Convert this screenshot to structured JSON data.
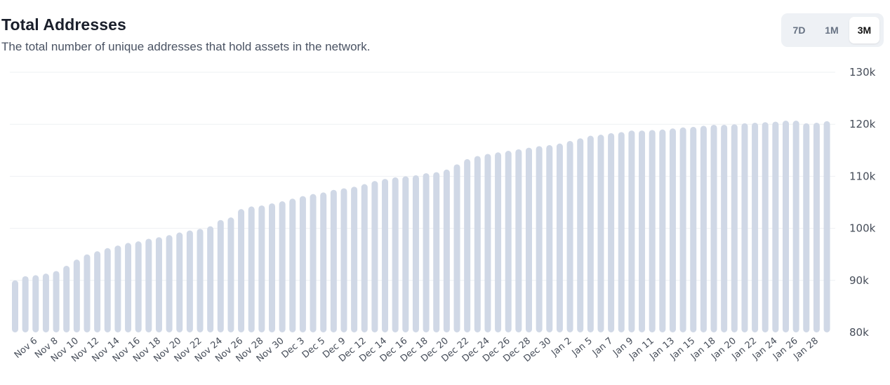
{
  "header": {
    "title": "Total Addresses",
    "subtitle": "The total number of unique addresses that hold assets in the network."
  },
  "range_toggle": {
    "options": [
      "7D",
      "1M",
      "3M"
    ],
    "selected": "3M"
  },
  "colors": {
    "bar": "#d0d8e6",
    "grid": "#eef0f3",
    "axis_text": "#464d59",
    "toggle_bg": "#eef1f5"
  },
  "chart_data": {
    "type": "bar",
    "title": "Total Addresses",
    "ylim": [
      80000,
      130000
    ],
    "y_ticks": [
      {
        "value": 130000,
        "label": "130k"
      },
      {
        "value": 120000,
        "label": "120k"
      },
      {
        "value": 110000,
        "label": "110k"
      },
      {
        "value": 100000,
        "label": "100k"
      },
      {
        "value": 90000,
        "label": "90k"
      },
      {
        "value": 80000,
        "label": "80k"
      }
    ],
    "y_axis_position": "right",
    "grid": true,
    "x_tick_labels": [
      {
        "bar_index": 2,
        "label": "Nov 6"
      },
      {
        "bar_index": 4,
        "label": "Nov 8"
      },
      {
        "bar_index": 6,
        "label": "Nov 10"
      },
      {
        "bar_index": 8,
        "label": "Nov 12"
      },
      {
        "bar_index": 10,
        "label": "Nov 14"
      },
      {
        "bar_index": 12,
        "label": "Nov 16"
      },
      {
        "bar_index": 14,
        "label": "Nov 18"
      },
      {
        "bar_index": 16,
        "label": "Nov 20"
      },
      {
        "bar_index": 18,
        "label": "Nov 22"
      },
      {
        "bar_index": 20,
        "label": "Nov 24"
      },
      {
        "bar_index": 22,
        "label": "Nov 26"
      },
      {
        "bar_index": 24,
        "label": "Nov 28"
      },
      {
        "bar_index": 26,
        "label": "Nov 30"
      },
      {
        "bar_index": 28,
        "label": "Dec 3"
      },
      {
        "bar_index": 30,
        "label": "Dec 5"
      },
      {
        "bar_index": 32,
        "label": "Dec 9"
      },
      {
        "bar_index": 34,
        "label": "Dec 12"
      },
      {
        "bar_index": 36,
        "label": "Dec 14"
      },
      {
        "bar_index": 38,
        "label": "Dec 16"
      },
      {
        "bar_index": 40,
        "label": "Dec 18"
      },
      {
        "bar_index": 42,
        "label": "Dec 20"
      },
      {
        "bar_index": 44,
        "label": "Dec 22"
      },
      {
        "bar_index": 46,
        "label": "Dec 24"
      },
      {
        "bar_index": 48,
        "label": "Dec 26"
      },
      {
        "bar_index": 50,
        "label": "Dec 28"
      },
      {
        "bar_index": 52,
        "label": "Dec 30"
      },
      {
        "bar_index": 54,
        "label": "Jan 2"
      },
      {
        "bar_index": 56,
        "label": "Jan 5"
      },
      {
        "bar_index": 58,
        "label": "Jan 7"
      },
      {
        "bar_index": 60,
        "label": "Jan 9"
      },
      {
        "bar_index": 62,
        "label": "Jan 11"
      },
      {
        "bar_index": 64,
        "label": "Jan 13"
      },
      {
        "bar_index": 66,
        "label": "Jan 15"
      },
      {
        "bar_index": 68,
        "label": "Jan 18"
      },
      {
        "bar_index": 70,
        "label": "Jan 20"
      },
      {
        "bar_index": 72,
        "label": "Jan 22"
      },
      {
        "bar_index": 74,
        "label": "Jan 24"
      },
      {
        "bar_index": 76,
        "label": "Jan 26"
      },
      {
        "bar_index": 78,
        "label": "Jan 28"
      }
    ],
    "values": [
      90000,
      90800,
      91000,
      91300,
      91800,
      92800,
      94000,
      95000,
      95600,
      96200,
      96700,
      97200,
      97500,
      98000,
      98300,
      98700,
      99200,
      99600,
      99900,
      100400,
      101600,
      102100,
      103700,
      104200,
      104400,
      104800,
      105200,
      105700,
      106200,
      106600,
      106900,
      107400,
      107700,
      108000,
      108500,
      109100,
      109500,
      109800,
      110000,
      110200,
      110600,
      110800,
      111300,
      112300,
      113300,
      113900,
      114300,
      114600,
      114900,
      115200,
      115500,
      115800,
      116000,
      116300,
      116800,
      117300,
      117800,
      118000,
      118300,
      118500,
      118800,
      118800,
      118900,
      119000,
      119200,
      119400,
      119500,
      119700,
      119900,
      119900,
      120000,
      120200,
      120300,
      120400,
      120500,
      120700,
      120700,
      120200,
      120300,
      120600
    ]
  }
}
